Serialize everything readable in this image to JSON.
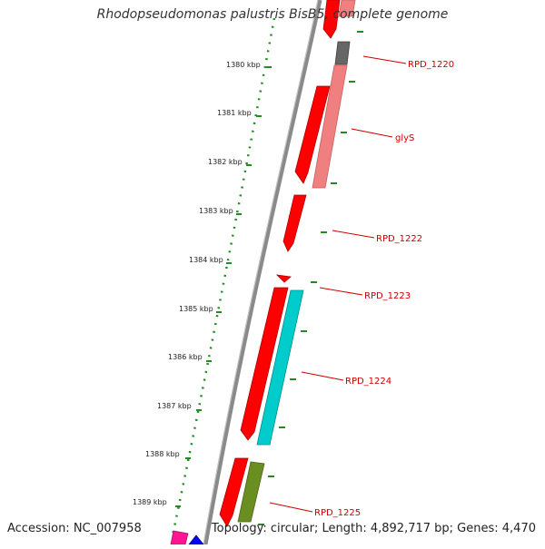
{
  "title": "Rhodopseudomonas palustris BisB5, complete genome",
  "accession_text": "Accession: NC_007958",
  "summary_text": "Topology: circular; Length: 4,892,717 bp; Genes: 4,470",
  "kbp_labels": [
    "1380 kbp",
    "1381 kbp",
    "1382 kbp",
    "1383 kbp",
    "1384 kbp",
    "1385 kbp",
    "1386 kbp",
    "1387 kbp",
    "1388 kbp",
    "1389 kbp"
  ],
  "gene_labels": [
    "RPD_1220",
    "glyS",
    "RPD_1222",
    "RPD_1223",
    "RPD_1224",
    "RPD_1225"
  ],
  "colors": {
    "cds_red": "#ff0000",
    "cds_pink": "#f08080",
    "gray_feature": "#666666",
    "cyan_feature": "#00cccc",
    "olive_feature": "#6b8e23",
    "magenta_feature": "#ff1493",
    "blue_feature": "#0000ff",
    "tick_green": "#228b22",
    "label_red": "#cc0000",
    "backbone": "#808080"
  }
}
